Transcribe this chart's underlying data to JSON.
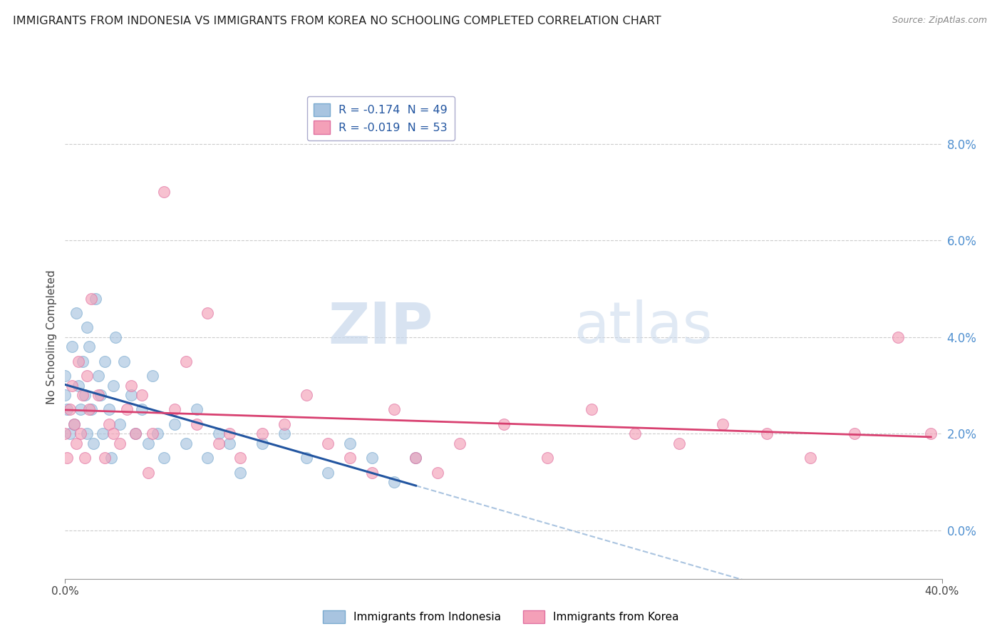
{
  "title": "IMMIGRANTS FROM INDONESIA VS IMMIGRANTS FROM KOREA NO SCHOOLING COMPLETED CORRELATION CHART",
  "source": "Source: ZipAtlas.com",
  "ylabel": "No Schooling Completed",
  "right_yvalues": [
    0.0,
    2.0,
    4.0,
    6.0,
    8.0
  ],
  "legend_indonesia": "R = -0.174  N = 49",
  "legend_korea": "R = -0.019  N = 53",
  "indonesia_color": "#a8c4e0",
  "indonesia_edge_color": "#7aaacf",
  "korea_color": "#f4a0b8",
  "korea_edge_color": "#e070a0",
  "indonesia_line_color": "#2255a0",
  "korea_line_color": "#d84070",
  "dashed_line_color": "#aac4e0",
  "background_color": "#ffffff",
  "watermark_zip": "ZIP",
  "watermark_atlas": "atlas",
  "xlim": [
    0.0,
    40.0
  ],
  "ylim": [
    -1.0,
    9.0
  ],
  "indonesia_x": [
    0.0,
    0.0,
    0.1,
    0.2,
    0.3,
    0.4,
    0.5,
    0.6,
    0.7,
    0.8,
    0.9,
    1.0,
    1.0,
    1.1,
    1.2,
    1.3,
    1.4,
    1.5,
    1.6,
    1.7,
    1.8,
    2.0,
    2.1,
    2.2,
    2.3,
    2.5,
    2.7,
    3.0,
    3.2,
    3.5,
    3.8,
    4.0,
    4.2,
    4.5,
    5.0,
    5.5,
    6.0,
    6.5,
    7.0,
    7.5,
    8.0,
    9.0,
    10.0,
    11.0,
    12.0,
    13.0,
    14.0,
    15.0,
    16.0
  ],
  "indonesia_y": [
    2.8,
    3.2,
    2.5,
    2.0,
    3.8,
    2.2,
    4.5,
    3.0,
    2.5,
    3.5,
    2.8,
    4.2,
    2.0,
    3.8,
    2.5,
    1.8,
    4.8,
    3.2,
    2.8,
    2.0,
    3.5,
    2.5,
    1.5,
    3.0,
    4.0,
    2.2,
    3.5,
    2.8,
    2.0,
    2.5,
    1.8,
    3.2,
    2.0,
    1.5,
    2.2,
    1.8,
    2.5,
    1.5,
    2.0,
    1.8,
    1.2,
    1.8,
    2.0,
    1.5,
    1.2,
    1.8,
    1.5,
    1.0,
    1.5
  ],
  "korea_x": [
    0.0,
    0.1,
    0.2,
    0.3,
    0.4,
    0.5,
    0.6,
    0.7,
    0.8,
    0.9,
    1.0,
    1.1,
    1.2,
    1.5,
    1.8,
    2.0,
    2.2,
    2.5,
    2.8,
    3.0,
    3.2,
    3.5,
    3.8,
    4.0,
    4.5,
    5.0,
    5.5,
    6.0,
    6.5,
    7.0,
    7.5,
    8.0,
    9.0,
    10.0,
    11.0,
    12.0,
    13.0,
    14.0,
    15.0,
    16.0,
    17.0,
    18.0,
    20.0,
    22.0,
    24.0,
    26.0,
    28.0,
    30.0,
    32.0,
    34.0,
    36.0,
    38.0,
    39.5
  ],
  "korea_y": [
    2.0,
    1.5,
    2.5,
    3.0,
    2.2,
    1.8,
    3.5,
    2.0,
    2.8,
    1.5,
    3.2,
    2.5,
    4.8,
    2.8,
    1.5,
    2.2,
    2.0,
    1.8,
    2.5,
    3.0,
    2.0,
    2.8,
    1.2,
    2.0,
    7.0,
    2.5,
    3.5,
    2.2,
    4.5,
    1.8,
    2.0,
    1.5,
    2.0,
    2.2,
    2.8,
    1.8,
    1.5,
    1.2,
    2.5,
    1.5,
    1.2,
    1.8,
    2.2,
    1.5,
    2.5,
    2.0,
    1.8,
    2.2,
    2.0,
    1.5,
    2.0,
    4.0,
    2.0
  ]
}
